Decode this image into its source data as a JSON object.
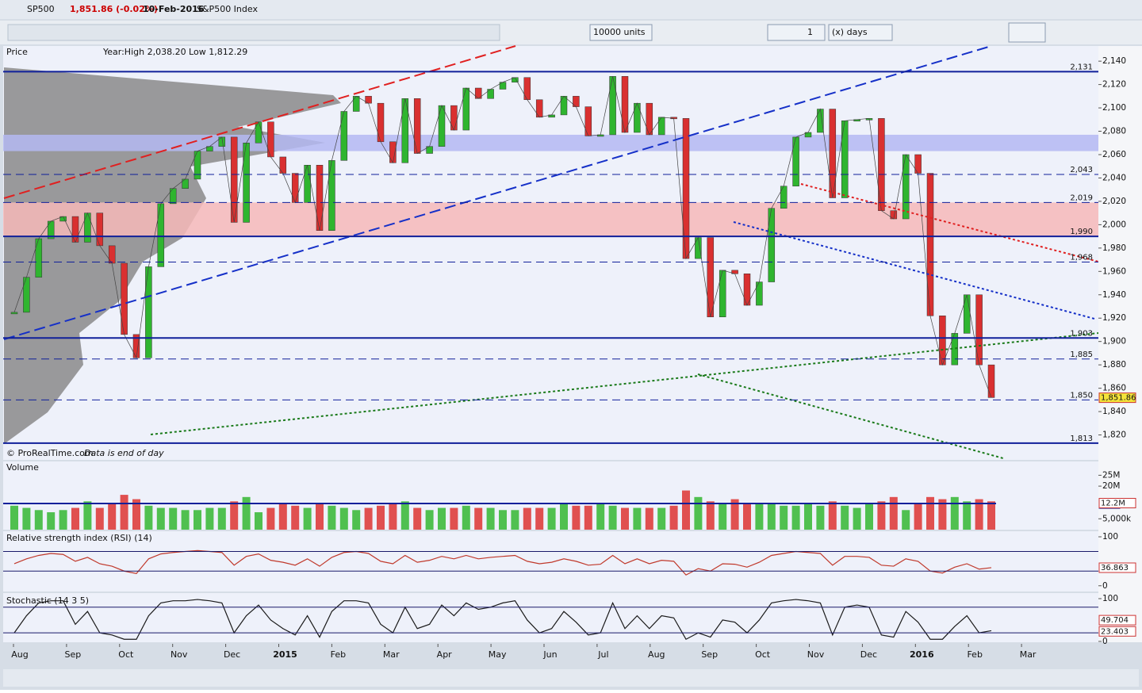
{
  "window": {
    "symbol": "SP500",
    "quote": "1,851.86 (-0.02%)",
    "date": "10-Feb-2016",
    "name": "S&P500 Index"
  },
  "toolbar": {
    "units": "10000 units",
    "period_count": "1",
    "period_unit": "(x) days"
  },
  "time_axis": {
    "labels": [
      "Aug",
      "Sep",
      "Oct",
      "Nov",
      "Dec",
      "2015",
      "Feb",
      "Mar",
      "Apr",
      "May",
      "Jun",
      "Jul",
      "Aug",
      "Sep",
      "Oct",
      "Nov",
      "Dec",
      "2016",
      "Feb",
      "Mar"
    ]
  },
  "footer": {
    "copyright": "© ProRealTime.com",
    "note": "Data is end of day"
  },
  "chart_data": [
    {
      "type": "line",
      "title": "Price",
      "subtitle": "Year:High 2,038.20 Low 1,812.29",
      "series": [
        {
          "name": "SP500",
          "color": "#2a2a2a",
          "values": [
            1925,
            1955,
            1988,
            2003,
            2007,
            1985,
            2010,
            1982,
            1967,
            1906,
            1886,
            1964,
            2018,
            2031,
            2039,
            2063,
            2067,
            2075,
            2002,
            2070,
            2088,
            2058,
            2044,
            2019,
            2051,
            1995,
            2055,
            2097,
            2110,
            2104,
            2071,
            2053,
            2108,
            2061,
            2067,
            2102,
            2081,
            2117,
            2108,
            2116,
            2122,
            2126,
            2107,
            2092,
            2094,
            2110,
            2101,
            2076,
            2077,
            2127,
            2079,
            2104,
            2077,
            2092,
            2091,
            1971,
            1989,
            1921,
            1961,
            1958,
            1931,
            1951,
            2014,
            2033,
            2075,
            2079,
            2099,
            2023,
            2089,
            2090,
            2091,
            2012,
            2005,
            2060,
            2044,
            1922,
            1880,
            1907,
            1940,
            1880,
            1852
          ]
        }
      ],
      "ylim": [
        1800,
        2153
      ],
      "yticks": [
        {
          "value": 1820,
          "label": "1,820"
        },
        {
          "value": 1840,
          "label": "1,840"
        },
        {
          "value": 1860,
          "label": "1,860"
        },
        {
          "value": 1880,
          "label": "1,880"
        },
        {
          "value": 1900,
          "label": "1,900"
        },
        {
          "value": 1920,
          "label": "1,920"
        },
        {
          "value": 1940,
          "label": "1,940"
        },
        {
          "value": 1960,
          "label": "1,960"
        },
        {
          "value": 1980,
          "label": "1,980"
        },
        {
          "value": 2000,
          "label": "2,000"
        },
        {
          "value": 2020,
          "label": "2,020"
        },
        {
          "value": 2040,
          "label": "2,040"
        },
        {
          "value": 2060,
          "label": "2,060"
        },
        {
          "value": 2080,
          "label": "2,080"
        },
        {
          "value": 2100,
          "label": "2,100"
        },
        {
          "value": 2120,
          "label": "2,120"
        },
        {
          "value": 2140,
          "label": "2,140"
        }
      ],
      "levels": [
        {
          "value": 2131,
          "label": "2,131",
          "style": "solid"
        },
        {
          "value": 2043,
          "label": "2,043",
          "style": "dashed"
        },
        {
          "value": 2019,
          "label": "2,019",
          "style": "dashed"
        },
        {
          "value": 1990,
          "label": "1,990",
          "style": "solid"
        },
        {
          "value": 1968,
          "label": "1,968",
          "style": "dashed"
        },
        {
          "value": 1903,
          "label": "1,903",
          "style": "solid"
        },
        {
          "value": 1885,
          "label": "1,885",
          "style": "dashed"
        },
        {
          "value": 1850,
          "label": "1,850",
          "style": "dashed"
        },
        {
          "value": 1813,
          "label": "1,813",
          "style": "solid"
        }
      ],
      "zones": [
        {
          "from": 2063,
          "to": 2077,
          "color": "#b4b8f2"
        },
        {
          "from": 1990,
          "to": 2019,
          "color": "#f6b8b8"
        }
      ],
      "last": {
        "value": 1851.86,
        "label": "1,851.86"
      }
    },
    {
      "type": "bar",
      "title": "Volume",
      "series": [
        {
          "name": "Volume",
          "values": [
            11,
            10,
            9,
            8,
            9,
            10,
            13,
            10,
            12,
            16,
            14,
            11,
            10,
            10,
            9,
            9,
            10,
            10,
            13,
            15,
            8,
            10,
            12,
            11,
            10,
            12,
            11,
            10,
            9,
            10,
            11,
            12,
            13,
            10,
            9,
            10,
            10,
            11,
            10,
            10,
            9,
            9,
            10,
            10,
            10,
            12,
            11,
            11,
            12,
            11,
            10,
            10,
            10,
            10,
            11,
            18,
            15,
            13,
            12,
            14,
            12,
            12,
            12,
            11,
            11,
            12,
            11,
            13,
            11,
            10,
            12,
            13,
            15,
            9,
            12,
            15,
            14,
            15,
            13,
            14,
            13
          ]
        }
      ],
      "ylim": [
        0,
        25.5
      ],
      "yticks": [
        {
          "value": 25,
          "label": "25M"
        },
        {
          "value": 20,
          "label": "20M"
        },
        {
          "value": 5,
          "label": "5,000k"
        }
      ],
      "last": {
        "value": 12.2,
        "label": "12.2M"
      },
      "average": {
        "value": 12,
        "label": "12M"
      }
    },
    {
      "type": "line",
      "title": "Relative strength index (RSI) (14)",
      "series": [
        {
          "name": "RSI",
          "color": "#c0392b",
          "values": [
            45,
            55,
            62,
            66,
            64,
            50,
            58,
            45,
            40,
            30,
            25,
            55,
            65,
            68,
            70,
            72,
            70,
            68,
            42,
            60,
            65,
            52,
            48,
            42,
            55,
            40,
            58,
            68,
            70,
            66,
            50,
            45,
            62,
            48,
            52,
            60,
            55,
            62,
            55,
            58,
            60,
            62,
            50,
            45,
            48,
            55,
            50,
            42,
            44,
            62,
            45,
            55,
            45,
            52,
            50,
            22,
            35,
            30,
            45,
            44,
            38,
            48,
            62,
            66,
            70,
            68,
            66,
            42,
            60,
            60,
            58,
            42,
            40,
            55,
            50,
            30,
            26,
            38,
            45,
            34,
            37
          ]
        }
      ],
      "ylim": [
        -2,
        100
      ],
      "yticks": [
        100,
        0
      ],
      "bands": [
        70,
        30
      ],
      "last": {
        "value": 36.863,
        "label": "36.863"
      }
    },
    {
      "type": "line",
      "title": "Stochastic (14 3 5)",
      "series": [
        {
          "name": "%K",
          "color": "#1a1a1a",
          "values": [
            20,
            60,
            90,
            95,
            95,
            40,
            70,
            20,
            15,
            5,
            5,
            60,
            90,
            95,
            95,
            98,
            95,
            90,
            20,
            60,
            85,
            50,
            30,
            15,
            60,
            10,
            70,
            95,
            95,
            90,
            40,
            20,
            80,
            30,
            40,
            85,
            60,
            90,
            75,
            80,
            90,
            95,
            50,
            20,
            30,
            70,
            45,
            15,
            20,
            90,
            30,
            60,
            30,
            60,
            55,
            5,
            20,
            10,
            50,
            45,
            20,
            50,
            90,
            95,
            98,
            95,
            90,
            15,
            80,
            85,
            80,
            15,
            10,
            70,
            45,
            5,
            5,
            35,
            60,
            20,
            25
          ]
        }
      ],
      "ylim": [
        -2,
        100
      ],
      "yticks": [
        100,
        0
      ],
      "bands": [
        80,
        20
      ],
      "last": [
        {
          "value": 49.704,
          "label": "49.704"
        },
        {
          "value": 23.403,
          "label": "23.403"
        }
      ]
    }
  ]
}
